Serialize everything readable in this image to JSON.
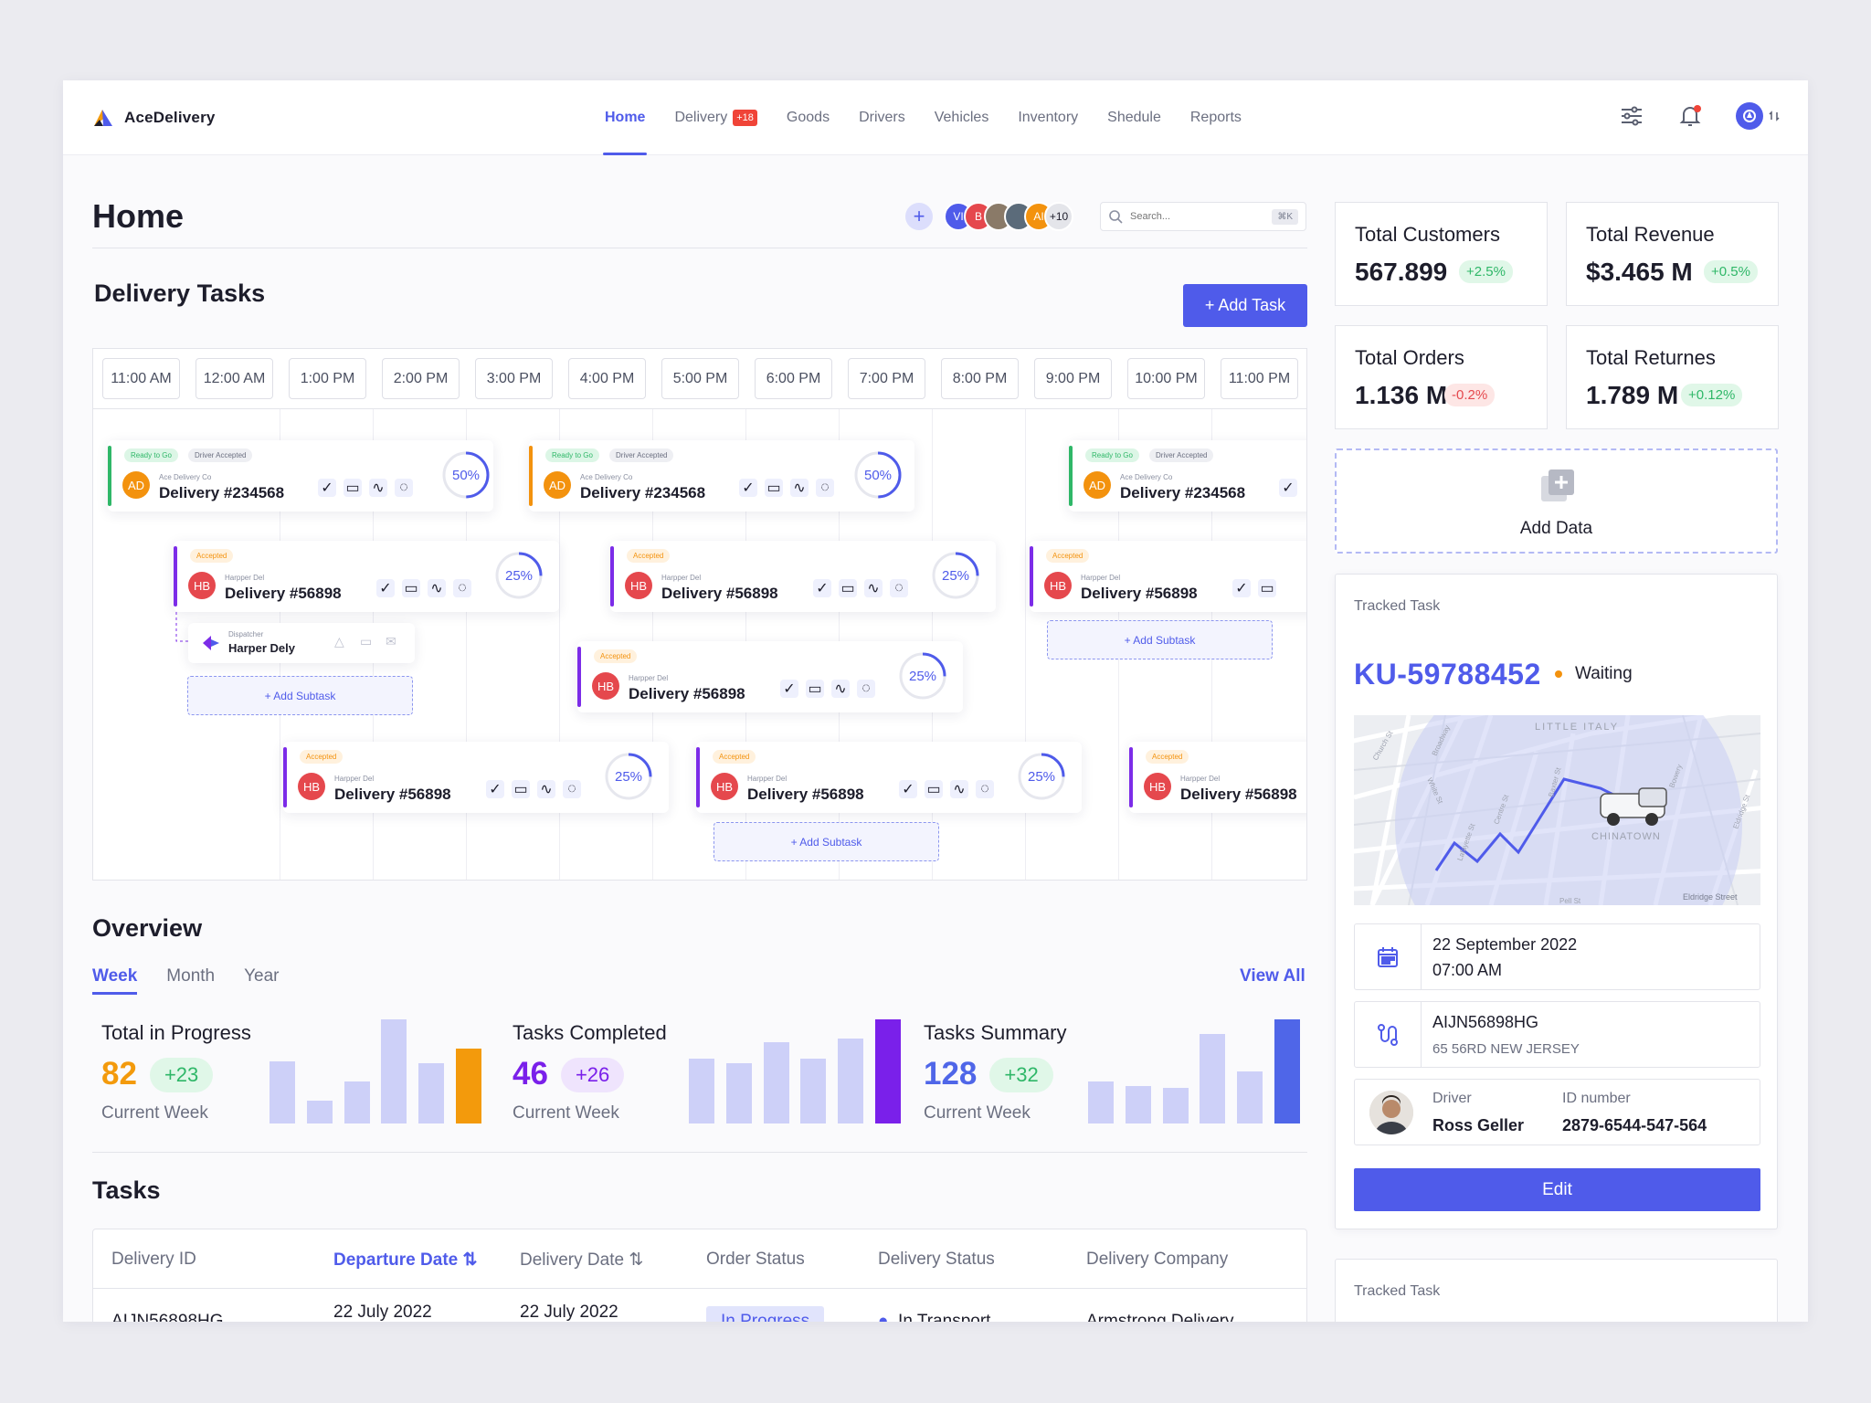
{
  "brand": {
    "name": "AceDelivery"
  },
  "nav": {
    "items": [
      {
        "label": "Home"
      },
      {
        "label": "Delivery",
        "badge": "+18"
      },
      {
        "label": "Goods"
      },
      {
        "label": "Drivers"
      },
      {
        "label": "Vehicles"
      },
      {
        "label": "Inventory"
      },
      {
        "label": "Shedule"
      },
      {
        "label": "Reports"
      }
    ],
    "active": "Home",
    "icons": [
      "sliders-icon",
      "bell-icon",
      "user-avatar-icon"
    ]
  },
  "page": {
    "title": "Home"
  },
  "team": {
    "members": [
      {
        "initials": "VI",
        "color": "#4f5bea"
      },
      {
        "initials": "B",
        "color": "#e5484d"
      },
      {
        "initials": "",
        "color": "#8a7a68"
      },
      {
        "initials": "",
        "color": "#5b6b7a"
      },
      {
        "initials": "AI",
        "color": "#f3920e"
      }
    ],
    "more": "+10"
  },
  "search": {
    "placeholder": "Search...",
    "shortcut": "⌘K"
  },
  "delivery_tasks": {
    "title": "Delivery Tasks",
    "add_label": "+ Add Task",
    "hours": [
      "11:00 AM",
      "12:00 AM",
      "1:00 PM",
      "2:00 PM",
      "3:00 PM",
      "4:00 PM",
      "5:00 PM",
      "6:00 PM",
      "7:00 PM",
      "8:00 PM",
      "9:00 PM",
      "10:00 PM",
      "11:00 PM"
    ],
    "tags": {
      "ready": "Ready to Go",
      "driver": "Driver Accepted",
      "accepted": "Accepted"
    },
    "cards": [
      {
        "initials": "AD",
        "company": "Ace Delivery Co",
        "title": "Delivery #234568",
        "progress": "50%",
        "color": "#f3920e",
        "bar": "#2fb768"
      },
      {
        "initials": "AD",
        "company": "Ace Delivery Co",
        "title": "Delivery #234568",
        "progress": "50%",
        "color": "#f3920e",
        "bar": "#f3920e"
      },
      {
        "initials": "AD",
        "company": "Ace Delivery Co",
        "title": "Delivery #234568",
        "progress": "",
        "color": "#f3920e",
        "bar": "#2fb768"
      },
      {
        "initials": "HB",
        "company": "Harpper Del",
        "title": "Delivery #56898",
        "progress": "25%",
        "color": "#e5484d",
        "bar": "#7c2ce8"
      },
      {
        "initials": "HB",
        "company": "Harpper Del",
        "title": "Delivery #56898",
        "progress": "25%",
        "color": "#e5484d",
        "bar": "#7c2ce8"
      },
      {
        "initials": "HB",
        "company": "Harpper Del",
        "title": "Delivery #56898",
        "progress": "",
        "color": "#e5484d",
        "bar": "#7c2ce8"
      },
      {
        "initials": "HB",
        "company": "Harpper Del",
        "title": "Delivery #56898",
        "progress": "25%",
        "color": "#e5484d",
        "bar": "#7c2ce8"
      },
      {
        "initials": "HB",
        "company": "Harpper Del",
        "title": "Delivery #56898",
        "progress": "25%",
        "color": "#e5484d",
        "bar": "#7c2ce8"
      },
      {
        "initials": "HB",
        "company": "Harpper Del",
        "title": "Delivery #56898",
        "progress": "25%",
        "color": "#e5484d",
        "bar": "#7c2ce8"
      },
      {
        "initials": "HB",
        "company": "Harpper Del",
        "title": "Delivery #56898",
        "progress": "",
        "color": "#e5484d",
        "bar": "#7c2ce8"
      }
    ],
    "dispatcher": {
      "role": "Dispatcher",
      "name": "Harper Dely"
    },
    "add_subtask": "+ Add Subtask"
  },
  "overview": {
    "title": "Overview",
    "tabs": [
      "Week",
      "Month",
      "Year"
    ],
    "active_tab": "Week",
    "view_all": "View All",
    "metrics": [
      {
        "label": "Total in Progress",
        "value": "82",
        "delta": "+23",
        "period": "Current Week",
        "color": "#f39a0c",
        "bars": [
          0.6,
          0.22,
          0.4,
          1.0,
          0.58,
          0.72
        ],
        "highlight": 5
      },
      {
        "label": "Tasks Completed",
        "value": "46",
        "delta": "+26",
        "period": "Current Week",
        "color": "#7a20ea",
        "bars": [
          0.62,
          0.58,
          0.78,
          0.62,
          0.82,
          1.0
        ],
        "highlight": 5
      },
      {
        "label": "Tasks Summary",
        "value": "128",
        "delta": "+32",
        "period": "Current Week",
        "color": "#4f66e8",
        "bars": [
          0.4,
          0.36,
          0.34,
          0.86,
          0.5,
          1.0
        ],
        "highlight": 5
      }
    ]
  },
  "tasks": {
    "title": "Tasks",
    "columns": [
      "Delivery ID",
      "Departure Date",
      "Delivery Date",
      "Order Status",
      "Delivery Status",
      "Delivery Company"
    ],
    "sorted_column": "Departure Date",
    "rows": [
      {
        "id": "AIJN56898HG",
        "departure": "22 July 2022",
        "delivery": "22 July 2022",
        "order_status": "In Progress",
        "delivery_status": "In Transport",
        "company": "Armstrong Delivery"
      }
    ]
  },
  "stats": [
    {
      "label": "Total Customers",
      "value": "567.899",
      "delta": "+2.5%",
      "trend": "up"
    },
    {
      "label": "Total Revenue",
      "value": "$3.465 M",
      "delta": "+0.5%",
      "trend": "up"
    },
    {
      "label": "Total Orders",
      "value": "1.136 M",
      "delta": "-0.2%",
      "trend": "down"
    },
    {
      "label": "Total Returnes",
      "value": "1.789 M",
      "delta": "+0.12%",
      "trend": "up"
    }
  ],
  "add_data": {
    "label": "Add Data"
  },
  "tracked": {
    "label": "Tracked Task",
    "id": "KU-59788452",
    "status": "Waiting",
    "map_labels": [
      "LITTLE ITALY",
      "CHINATOWN",
      "Eldridge Street",
      "Church St",
      "Broadway",
      "White St",
      "Lafayette St",
      "Centre St",
      "Baxter St",
      "Bowery",
      "Eldridge St",
      "Pell St"
    ],
    "date": "22 September 2022",
    "time": "07:00 AM",
    "route_id": "AIJN56898HG",
    "address": "65 56RD NEW JERSEY",
    "driver_label": "Driver",
    "driver_name": "Ross Geller",
    "id_label": "ID number",
    "id_number": "2879-6544-547-564",
    "edit_label": "Edit"
  },
  "tracked2": {
    "label": "Tracked Task"
  }
}
